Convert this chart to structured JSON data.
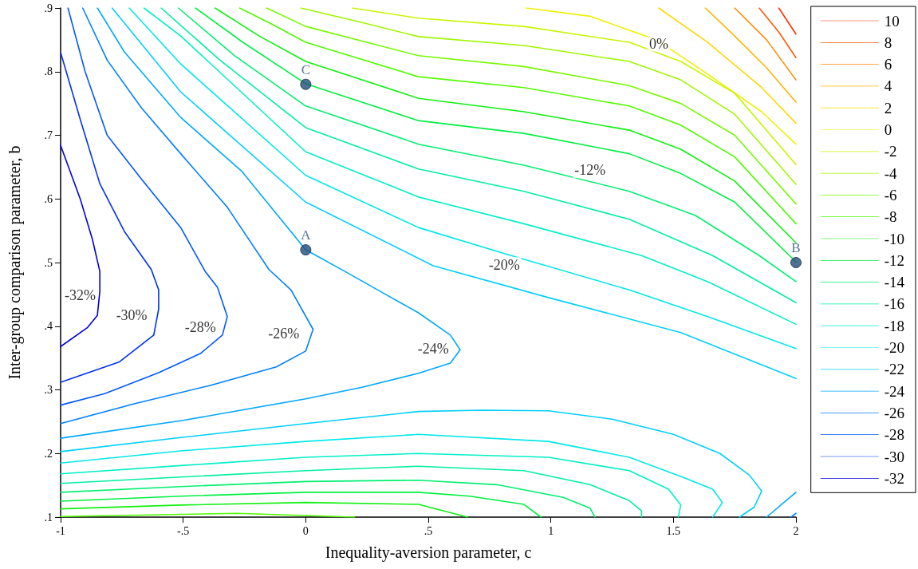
{
  "chart_data": {
    "type": "line",
    "xlabel": "Inequality-aversion parameter, c",
    "ylabel": "Inter-group comparison parameter, b",
    "xlim": [
      -1,
      2
    ],
    "xticks": [
      -1,
      {
        "value": -0.5,
        "label": "-.5"
      },
      0,
      {
        "value": 0.5,
        "label": ".5"
      },
      1,
      1.5,
      2
    ],
    "ylim": [
      0.1,
      0.9
    ],
    "yticks": [
      {
        "value": 0.1,
        "label": ".1"
      },
      {
        "value": 0.2,
        "label": ".2"
      },
      {
        "value": 0.3,
        "label": ".3"
      },
      {
        "value": 0.4,
        "label": ".4"
      },
      {
        "value": 0.5,
        "label": ".5"
      },
      {
        "value": 0.6,
        "label": ".6"
      },
      {
        "value": 0.7,
        "label": ".7"
      },
      {
        "value": 0.8,
        "label": ".8"
      },
      {
        "value": 0.9,
        "label": ".9"
      }
    ],
    "grid": false,
    "legend": "right",
    "marker": "none",
    "annotations": [
      {
        "text": "0%",
        "x": 1.44,
        "y": 0.844
      },
      {
        "text": "-12%",
        "x": 1.16,
        "y": 0.645
      },
      {
        "text": "-20%",
        "x": 0.81,
        "y": 0.496
      },
      {
        "text": "-24%",
        "x": 0.52,
        "y": 0.365
      },
      {
        "text": "-26%",
        "x": -0.09,
        "y": 0.388
      },
      {
        "text": "-28%",
        "x": -0.43,
        "y": 0.398
      },
      {
        "text": "-30%",
        "x": -0.71,
        "y": 0.417
      },
      {
        "text": "-32%",
        "x": -0.92,
        "y": 0.449
      }
    ],
    "series": [
      {
        "name": "10",
        "color": "#ff3000",
        "x": [
          1.93,
          2
        ],
        "values": [
          0.9,
          0.859
        ]
      },
      {
        "name": "8",
        "color": "#ff5a00",
        "x": [
          1.85,
          1.93,
          2
        ],
        "values": [
          0.9,
          0.862,
          0.822
        ]
      },
      {
        "name": "6",
        "color": "#ff8c00",
        "x": [
          1.75,
          1.88,
          2
        ],
        "values": [
          0.9,
          0.85,
          0.787
        ]
      },
      {
        "name": "4",
        "color": "#ffb400",
        "x": [
          1.63,
          1.75,
          1.88,
          2
        ],
        "values": [
          0.9,
          0.856,
          0.806,
          0.752
        ]
      },
      {
        "name": "2",
        "color": "#ffd800",
        "x": [
          1.44,
          1.64,
          1.86,
          2
        ],
        "values": [
          0.9,
          0.846,
          0.775,
          0.719
        ]
      },
      {
        "name": "0",
        "color": "#f0f000",
        "x": [
          0.9,
          1.16,
          1.43,
          1.64,
          1.86,
          2
        ],
        "values": [
          0.9,
          0.887,
          0.85,
          0.796,
          0.737,
          0.686
        ]
      },
      {
        "name": "-2",
        "color": "#c8f500",
        "x": [
          0.19,
          0.46,
          0.89,
          1.32,
          1.53,
          1.75,
          2
        ],
        "values": [
          0.9,
          0.884,
          0.871,
          0.846,
          0.816,
          0.766,
          0.654
        ]
      },
      {
        "name": "-4",
        "color": "#a0f800",
        "x": [
          -0.02,
          0.23,
          0.46,
          0.89,
          1.32,
          1.53,
          1.75,
          2
        ],
        "values": [
          0.9,
          0.877,
          0.855,
          0.841,
          0.816,
          0.787,
          0.733,
          0.623
        ]
      },
      {
        "name": "-6",
        "color": "#78fa00",
        "x": [
          -0.16,
          0,
          0.46,
          0.89,
          1.32,
          1.53,
          1.75,
          2
        ],
        "values": [
          0.9,
          0.871,
          0.825,
          0.808,
          0.778,
          0.75,
          0.7,
          0.592
        ]
      },
      {
        "name": "-8",
        "color": "#50fc00",
        "x": [
          -0.27,
          -0.14,
          0,
          0.46,
          0.89,
          1.32,
          1.53,
          1.75,
          2,
          null,
          -1,
          -0.28,
          0.2
        ],
        "values": [
          0.9,
          0.875,
          0.846,
          0.792,
          0.775,
          0.746,
          0.716,
          0.666,
          0.561,
          null,
          0.101,
          0.106,
          0.1
        ]
      },
      {
        "name": "-10",
        "color": "#10f010",
        "x": [
          -0.37,
          -0.19,
          0,
          0.46,
          0.89,
          1.32,
          1.53,
          1.75,
          2,
          null,
          -1,
          -0.51,
          0,
          0.46,
          0.62,
          0.66
        ],
        "values": [
          0.9,
          0.856,
          0.816,
          0.758,
          0.737,
          0.708,
          0.678,
          0.628,
          0.531,
          null,
          0.113,
          0.119,
          0.123,
          0.12,
          0.104,
          0.1
        ]
      },
      {
        "name": "-12",
        "color": "#00f040",
        "x": [
          -0.45,
          -0.26,
          0,
          0.46,
          0.89,
          1.32,
          1.53,
          1.75,
          2,
          null,
          -1,
          -0.51,
          0,
          0.46,
          0.67,
          0.89,
          0.96
        ],
        "values": [
          0.9,
          0.847,
          0.781,
          0.723,
          0.703,
          0.671,
          0.64,
          0.595,
          0.501,
          null,
          0.125,
          0.133,
          0.139,
          0.139,
          0.133,
          0.12,
          0.1
        ]
      },
      {
        "name": "-14",
        "color": "#00f070",
        "x": [
          -0.52,
          -0.29,
          0,
          0.46,
          0.89,
          1.32,
          1.59,
          1.85,
          2,
          null,
          -1,
          -0.51,
          0,
          0.46,
          0.78,
          1.05,
          1.16,
          1.18
        ],
        "values": [
          0.9,
          0.825,
          0.746,
          0.686,
          0.653,
          0.612,
          0.574,
          0.511,
          0.47,
          null,
          0.139,
          0.148,
          0.156,
          0.158,
          0.151,
          0.131,
          0.114,
          0.1
        ]
      },
      {
        "name": "-16",
        "color": "#00f0a0",
        "x": [
          -0.59,
          -0.35,
          0,
          0.46,
          0.89,
          1.32,
          1.66,
          2,
          null,
          -1,
          -0.51,
          0,
          0.46,
          0.89,
          1.16,
          1.32,
          1.37,
          1.37
        ],
        "values": [
          0.9,
          0.818,
          0.712,
          0.647,
          0.612,
          0.568,
          0.511,
          0.437,
          null,
          0.153,
          0.163,
          0.173,
          0.18,
          0.173,
          0.151,
          0.126,
          0.11,
          0.1
        ]
      },
      {
        "name": "-18",
        "color": "#00f0c8",
        "x": [
          -0.66,
          -0.51,
          0,
          0.46,
          0.89,
          1.37,
          1.64,
          2,
          null,
          -1,
          -0.51,
          0,
          0.46,
          0.99,
          1.32,
          1.48,
          1.53,
          1.52
        ],
        "values": [
          0.9,
          0.856,
          0.674,
          0.603,
          0.561,
          0.511,
          0.47,
          0.403,
          null,
          0.168,
          0.181,
          0.194,
          0.2,
          0.194,
          0.173,
          0.144,
          0.119,
          0.1
        ]
      },
      {
        "name": "-20",
        "color": "#00e8e8",
        "x": [
          -0.72,
          -0.51,
          0,
          0.46,
          0.81,
          1.32,
          1.64,
          2,
          null,
          -1,
          -0.51,
          0,
          0.46,
          0.99,
          1.32,
          1.53,
          1.66,
          1.7,
          1.66
        ],
        "values": [
          0.9,
          0.812,
          0.637,
          0.555,
          0.514,
          0.457,
          0.415,
          0.365,
          null,
          0.185,
          0.204,
          0.219,
          0.23,
          0.219,
          0.194,
          0.164,
          0.144,
          0.123,
          0.1
        ]
      },
      {
        "name": "-22",
        "color": "#00d0ff",
        "x": [
          -0.79,
          -0.51,
          0,
          0.52,
          0.99,
          1.53,
          2,
          null,
          -1,
          -0.51,
          0,
          0.46,
          0.72,
          0.99,
          1.25,
          1.5,
          1.69,
          1.81,
          1.86,
          1.83,
          1.77
        ],
        "values": [
          0.9,
          0.768,
          0.595,
          0.495,
          0.445,
          0.39,
          0.318,
          null,
          0.203,
          0.225,
          0.247,
          0.266,
          0.268,
          0.267,
          0.254,
          0.23,
          0.2,
          0.166,
          0.141,
          0.116,
          0.1
        ]
      },
      {
        "name": "-24",
        "color": "#00a8ff",
        "x": [
          -0.85,
          -0.74,
          -0.51,
          -0.26,
          0,
          0.16,
          0.33,
          0.46,
          0.59,
          0.63,
          0.59,
          0.46,
          0.23,
          0,
          -0.5,
          -1,
          null,
          2,
          1.88
        ],
        "values": [
          0.9,
          0.831,
          0.728,
          0.643,
          0.52,
          0.486,
          0.449,
          0.421,
          0.386,
          0.363,
          0.342,
          0.326,
          0.304,
          0.286,
          0.252,
          0.224,
          null,
          0.139,
          0.1
        ]
      },
      {
        "name": "-26",
        "color": "#0080ff",
        "x": [
          -0.91,
          -0.81,
          -0.67,
          -0.51,
          -0.32,
          -0.15,
          -0.06,
          0.03,
          0,
          -0.12,
          -0.39,
          -0.71,
          -1,
          null,
          2,
          1.98
        ],
        "values": [
          0.9,
          0.818,
          0.743,
          0.671,
          0.587,
          0.489,
          0.457,
          0.395,
          0.361,
          0.336,
          0.307,
          0.277,
          0.247,
          null,
          0.106,
          0.1
        ]
      },
      {
        "name": "-28",
        "color": "#0058ff",
        "x": [
          -0.97,
          -0.9,
          -0.81,
          -0.67,
          -0.51,
          -0.41,
          -0.36,
          -0.32,
          -0.34,
          -0.43,
          -0.6,
          -0.82,
          -1
        ],
        "values": [
          0.9,
          0.8,
          0.7,
          0.631,
          0.555,
          0.486,
          0.461,
          0.415,
          0.386,
          0.357,
          0.327,
          0.294,
          0.276
        ]
      },
      {
        "name": "-30",
        "color": "#0030f0",
        "x": [
          -1,
          -0.92,
          -0.84,
          -0.74,
          -0.63,
          -0.6,
          -0.6,
          -0.62,
          -0.76,
          -1
        ],
        "values": [
          0.83,
          0.725,
          0.624,
          0.549,
          0.489,
          0.457,
          0.427,
          0.386,
          0.344,
          0.312
        ]
      },
      {
        "name": "-32",
        "color": "#0000e0",
        "x": [
          -1,
          -0.92,
          -0.87,
          -0.84,
          -0.84,
          -0.85,
          -0.89,
          -1
        ],
        "values": [
          0.684,
          0.6,
          0.536,
          0.486,
          0.455,
          0.417,
          0.398,
          0.368
        ]
      },
      {
        "type": "scatter",
        "marker": "circle",
        "color": "#1f4e79",
        "x": [
          0,
          2,
          0
        ],
        "values": [
          0.52,
          0.5,
          0.78
        ],
        "value_labels": [
          "A",
          "B",
          "C"
        ]
      }
    ]
  }
}
